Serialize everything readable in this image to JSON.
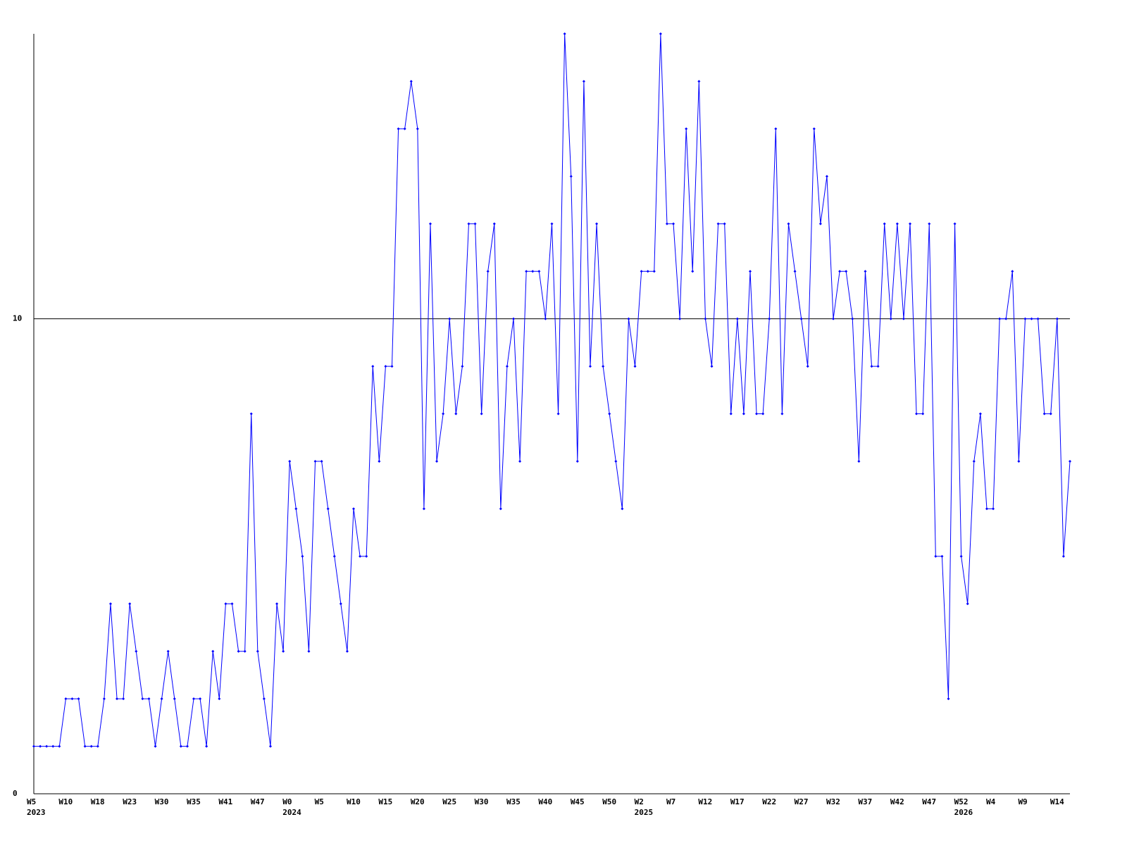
{
  "chart_data": {
    "type": "line",
    "categories": [
      "W5",
      null,
      null,
      null,
      null,
      "W10",
      null,
      null,
      null,
      null,
      "W18",
      null,
      null,
      null,
      null,
      "W23",
      null,
      null,
      null,
      null,
      "W30",
      null,
      null,
      null,
      null,
      "W35",
      null,
      null,
      null,
      null,
      "W41",
      null,
      null,
      null,
      null,
      "W47",
      null,
      null,
      null,
      null,
      "W0",
      null,
      null,
      null,
      null,
      "W5",
      null,
      null,
      null,
      null,
      "W10",
      null,
      null,
      null,
      null,
      "W15",
      null,
      null,
      null,
      null,
      "W20",
      null,
      null,
      null,
      null,
      "W25",
      null,
      null,
      null,
      null,
      "W30",
      null,
      null,
      null,
      null,
      "W35",
      null,
      null,
      null,
      null,
      "W40",
      null,
      null,
      null,
      null,
      "W45",
      null,
      null,
      null,
      null,
      "W50",
      null,
      null,
      null,
      null,
      "W2",
      null,
      null,
      null,
      null,
      "W7",
      null,
      null,
      null,
      null,
      "W12",
      null,
      null,
      null,
      null,
      "W17",
      null,
      null,
      null,
      null,
      "W22",
      null,
      null,
      null,
      null,
      "W27",
      null,
      null,
      null,
      null,
      "W32",
      null,
      null,
      null,
      null,
      "W37",
      null,
      null,
      null,
      null,
      "W42",
      null,
      null,
      null,
      null,
      "W47",
      null,
      null,
      null,
      null,
      "W52",
      null,
      null,
      null,
      null,
      "W4",
      null,
      null,
      null,
      null,
      "W9",
      null,
      null,
      null,
      null,
      "W14",
      null,
      null
    ],
    "year_categories": [
      "2023",
      null,
      null,
      null,
      null,
      null,
      null,
      null,
      null,
      null,
      null,
      null,
      null,
      null,
      null,
      null,
      null,
      null,
      null,
      null,
      null,
      null,
      null,
      null,
      null,
      null,
      null,
      null,
      null,
      null,
      null,
      null,
      null,
      null,
      null,
      null,
      null,
      null,
      null,
      null,
      "2024",
      null,
      null,
      null,
      null,
      null,
      null,
      null,
      null,
      null,
      null,
      null,
      null,
      null,
      null,
      null,
      null,
      null,
      null,
      null,
      null,
      null,
      null,
      null,
      null,
      null,
      null,
      null,
      null,
      null,
      null,
      null,
      null,
      null,
      null,
      null,
      null,
      null,
      null,
      null,
      null,
      null,
      null,
      null,
      null,
      null,
      null,
      null,
      null,
      null,
      null,
      null,
      null,
      null,
      null,
      "2025",
      null,
      null,
      null,
      null,
      null,
      null,
      null,
      null,
      null,
      null,
      null,
      null,
      null,
      null,
      null,
      null,
      null,
      null,
      null,
      null,
      null,
      null,
      null,
      null,
      null,
      null,
      null,
      null,
      null,
      null,
      null,
      null,
      null,
      null,
      null,
      null,
      null,
      null,
      null,
      null,
      null,
      null,
      null,
      null,
      null,
      null,
      null,
      null,
      null,
      "2026",
      null,
      null,
      null,
      null,
      null,
      null,
      null,
      null,
      null,
      null,
      null,
      null,
      null,
      null,
      null,
      null,
      null
    ],
    "values": [
      1,
      1,
      1,
      1,
      1,
      2,
      2,
      2,
      1,
      1,
      1,
      2,
      4,
      2,
      2,
      4,
      3,
      2,
      2,
      1,
      2,
      3,
      2,
      1,
      1,
      2,
      2,
      1,
      3,
      2,
      4,
      4,
      3,
      3,
      8,
      3,
      2,
      1,
      4,
      3,
      7,
      6,
      5,
      3,
      7,
      7,
      6,
      5,
      4,
      3,
      6,
      5,
      5,
      9,
      7,
      9,
      9,
      14,
      14,
      15,
      14,
      6,
      12,
      7,
      8,
      10,
      8,
      9,
      12,
      12,
      8,
      11,
      12,
      6,
      9,
      10,
      7,
      11,
      11,
      11,
      10,
      12,
      8,
      16,
      13,
      7,
      15,
      9,
      12,
      9,
      8,
      7,
      6,
      10,
      9,
      11,
      11,
      11,
      16,
      12,
      12,
      10,
      14,
      11,
      15,
      10,
      9,
      12,
      12,
      8,
      10,
      8,
      11,
      8,
      8,
      10,
      14,
      8,
      12,
      11,
      10,
      9,
      14,
      12,
      13,
      10,
      11,
      11,
      10,
      7,
      11,
      9,
      9,
      12,
      10,
      12,
      10,
      12,
      8,
      8,
      12,
      5,
      5,
      2,
      12,
      5,
      4,
      7,
      8,
      6,
      6,
      10,
      10,
      11,
      7,
      10,
      10,
      10,
      8,
      8,
      10,
      5,
      7
    ],
    "color": "#0000ff",
    "ylim": [
      0,
      16
    ],
    "yticks": [
      0,
      10
    ],
    "grid": true
  }
}
